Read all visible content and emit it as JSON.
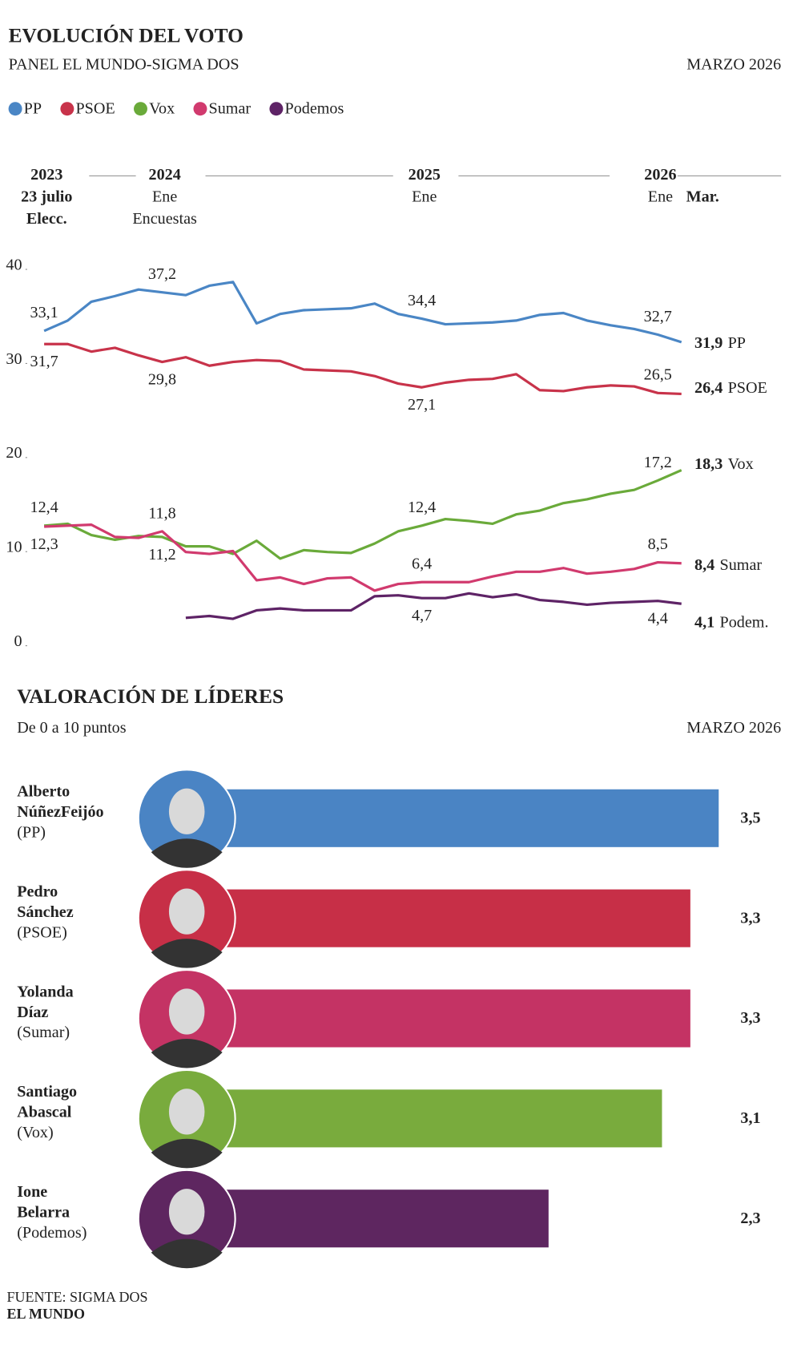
{
  "chart_data": [
    {
      "type": "line",
      "title": "EVOLUCIÓN DEL VOTO",
      "subtitle": "PANEL EL MUNDO-SIGMA DOS",
      "date": "MARZO 2026",
      "years": [
        "2023",
        null,
        null,
        null,
        null,
        "2024",
        null,
        null,
        null,
        null,
        null,
        null,
        null,
        null,
        null,
        null,
        "2025",
        null,
        null,
        null,
        null,
        null,
        null,
        null,
        null,
        null,
        "2026",
        null
      ],
      "categories": [
        "23 julio",
        null,
        null,
        null,
        null,
        "Ene",
        null,
        null,
        null,
        null,
        null,
        null,
        null,
        null,
        null,
        null,
        "Ene",
        null,
        null,
        null,
        null,
        null,
        null,
        null,
        null,
        null,
        "Ene",
        "Mar."
      ],
      "notes": [
        "Elecc.",
        null,
        null,
        null,
        null,
        "Encuestas",
        null,
        null,
        null,
        null,
        null,
        null,
        null,
        null,
        null,
        null,
        null,
        null,
        null,
        null,
        null,
        null,
        null,
        null,
        null,
        null,
        null,
        null
      ],
      "ylim": [
        0,
        40
      ],
      "yticks": [
        0,
        10,
        20,
        30,
        40
      ],
      "series": [
        {
          "name": "PP",
          "end_label": "PP",
          "color": "#4a86c5",
          "values": [
            33.1,
            34.2,
            36.2,
            36.8,
            37.5,
            37.2,
            36.9,
            37.9,
            38.3,
            33.9,
            34.9,
            35.3,
            35.4,
            35.5,
            36.0,
            34.9,
            34.4,
            33.8,
            33.9,
            34.0,
            34.2,
            34.8,
            35.0,
            34.2,
            33.7,
            33.3,
            32.7,
            31.9
          ],
          "value_labels": [
            "33,1",
            null,
            null,
            null,
            null,
            "37,2",
            null,
            null,
            null,
            null,
            null,
            null,
            null,
            null,
            null,
            null,
            "34,4",
            null,
            null,
            null,
            null,
            null,
            null,
            null,
            null,
            null,
            "32,7",
            "31,9"
          ]
        },
        {
          "name": "PSOE",
          "end_label": "PSOE",
          "color": "#c8334a",
          "values": [
            31.7,
            31.7,
            30.9,
            31.3,
            30.5,
            29.8,
            30.3,
            29.4,
            29.8,
            30.0,
            29.9,
            29.0,
            28.9,
            28.8,
            28.3,
            27.5,
            27.1,
            27.6,
            27.9,
            28.0,
            28.5,
            26.8,
            26.7,
            27.1,
            27.3,
            27.2,
            26.5,
            26.4
          ],
          "value_labels": [
            "31,7",
            null,
            null,
            null,
            null,
            "29,8",
            null,
            null,
            null,
            null,
            null,
            null,
            null,
            null,
            null,
            null,
            "27,1",
            null,
            null,
            null,
            null,
            null,
            null,
            null,
            null,
            null,
            "26,5",
            "26,4"
          ]
        },
        {
          "name": "Vox",
          "end_label": "Vox",
          "color": "#6aaa3a",
          "values": [
            12.4,
            12.6,
            11.4,
            10.9,
            11.3,
            11.2,
            10.2,
            10.2,
            9.4,
            10.8,
            8.9,
            9.8,
            9.6,
            9.5,
            10.5,
            11.8,
            12.4,
            13.1,
            12.9,
            12.6,
            13.6,
            14.0,
            14.8,
            15.2,
            15.8,
            16.2,
            17.2,
            18.3
          ],
          "value_labels": [
            "12,4",
            null,
            null,
            null,
            null,
            "11,2",
            null,
            null,
            null,
            null,
            null,
            null,
            null,
            null,
            null,
            null,
            "12,4",
            null,
            null,
            null,
            null,
            null,
            null,
            null,
            null,
            null,
            "17,2",
            "18,3"
          ]
        },
        {
          "name": "Sumar",
          "end_label": "Sumar",
          "color": "#d13a6e",
          "values": [
            12.3,
            12.4,
            12.5,
            11.2,
            11.1,
            11.8,
            9.6,
            9.4,
            9.7,
            6.6,
            6.9,
            6.2,
            6.8,
            6.9,
            5.5,
            6.2,
            6.4,
            6.4,
            6.4,
            7.0,
            7.5,
            7.5,
            7.9,
            7.3,
            7.5,
            7.8,
            8.5,
            8.4
          ],
          "value_labels": [
            "12,3",
            null,
            null,
            null,
            null,
            "11,8",
            null,
            null,
            null,
            null,
            null,
            null,
            null,
            null,
            null,
            null,
            "6,4",
            null,
            null,
            null,
            null,
            null,
            null,
            null,
            null,
            null,
            "8,5",
            "8,4"
          ]
        },
        {
          "name": "Podemos",
          "end_label": "Podem.",
          "color": "#5e2366",
          "values": [
            null,
            null,
            null,
            null,
            null,
            null,
            2.6,
            2.8,
            2.5,
            3.4,
            3.6,
            3.4,
            3.4,
            3.4,
            4.9,
            5.0,
            4.7,
            4.7,
            5.2,
            4.8,
            5.1,
            4.5,
            4.3,
            4.0,
            4.2,
            4.3,
            4.4,
            4.1
          ],
          "value_labels": [
            null,
            null,
            null,
            null,
            null,
            null,
            null,
            null,
            null,
            null,
            null,
            null,
            null,
            null,
            null,
            null,
            "4,7",
            null,
            null,
            null,
            null,
            null,
            null,
            null,
            null,
            null,
            "4,4",
            "4,1"
          ]
        }
      ]
    },
    {
      "type": "bar",
      "orientation": "horizontal",
      "title": "VALORACIÓN DE LÍDERES",
      "subtitle": "De 0 a 10 puntos",
      "date": "MARZO 2026",
      "categories": [
        [
          "Alberto",
          "NúñezFeijóo",
          "(PP)"
        ],
        [
          "Pedro",
          "Sánchez",
          "(PSOE)"
        ],
        [
          "Yolanda",
          "Díaz",
          "(Sumar)"
        ],
        [
          "Santiago",
          "Abascal",
          "(Vox)"
        ],
        [
          "Ione",
          "Belarra",
          "(Podemos)"
        ]
      ],
      "values": [
        3.5,
        3.3,
        3.3,
        3.1,
        2.3
      ],
      "value_labels": [
        "3,5",
        "3,3",
        "3,3",
        "3,1",
        "2,3"
      ],
      "colors": [
        "#4a84c4",
        "#c72f47",
        "#c43364",
        "#79ab3d",
        "#5e2660"
      ]
    }
  ],
  "footer": {
    "source": "FUENTE: SIGMA DOS",
    "publisher": "EL MUNDO"
  }
}
